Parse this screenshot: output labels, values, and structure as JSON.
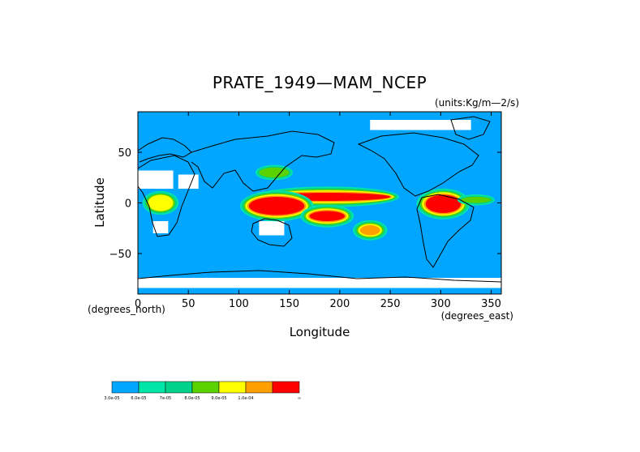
{
  "chart_data": {
    "type": "heatmap",
    "title": "PRATE_1949—MAM_NCEP",
    "units": "(units:Kg/m—2/s)",
    "xlabel": "Longitude",
    "ylabel": "Latitude",
    "x_unit_label": "(degrees_east)",
    "y_unit_label": "(degrees_north)",
    "xlim": [
      0,
      360
    ],
    "ylim": [
      -90,
      90
    ],
    "x_ticks": [
      0,
      50,
      100,
      150,
      200,
      250,
      300,
      350
    ],
    "y_ticks": [
      50,
      0,
      -50
    ],
    "x_tick_labels": [
      "0",
      "50",
      "100",
      "150",
      "200",
      "250",
      "300",
      "350"
    ],
    "y_tick_labels": [
      "50",
      "0",
      "−50"
    ],
    "colorbar": {
      "colors": [
        "#00a6ff",
        "#00e6a8",
        "#00d28c",
        "#5ad200",
        "#ffff00",
        "#ffa000",
        "#ff0000"
      ],
      "labels": [
        "3.0e-05",
        "6.0e-05",
        "7e-05",
        "8.0e-05",
        "9.0e-05",
        "1.0e-04",
        "∞"
      ]
    },
    "base_color": "#00a6ff",
    "missing_color": "#ffffff",
    "regions": [
      {
        "name": "itcz-pacific-core",
        "level": 7,
        "lon": [
          125,
          250
        ],
        "lat": [
          2,
          10
        ],
        "shape": "ellipse"
      },
      {
        "name": "maritime-continent",
        "level": 7,
        "lon": [
          110,
          165
        ],
        "lat": [
          -12,
          6
        ],
        "shape": "ellipse"
      },
      {
        "name": "spcz",
        "level": 7,
        "lon": [
          170,
          205
        ],
        "lat": [
          -18,
          -8
        ],
        "shape": "ellipse"
      },
      {
        "name": "amazon",
        "level": 7,
        "lon": [
          285,
          320
        ],
        "lat": [
          -10,
          8
        ],
        "shape": "ellipse"
      },
      {
        "name": "africa-equatorial",
        "level": 5,
        "lon": [
          10,
          35
        ],
        "lat": [
          -8,
          8
        ],
        "shape": "ellipse"
      },
      {
        "name": "atlantic-itcz",
        "level": 4,
        "lon": [
          320,
          350
        ],
        "lat": [
          0,
          6
        ],
        "shape": "ellipse"
      },
      {
        "name": "kuroshio",
        "level": 4,
        "lon": [
          120,
          150
        ],
        "lat": [
          25,
          35
        ],
        "shape": "ellipse"
      },
      {
        "name": "south-pacific-blob",
        "level": 6,
        "lon": [
          220,
          240
        ],
        "lat": [
          -32,
          -22
        ],
        "shape": "ellipse"
      }
    ],
    "missing_regions": [
      {
        "name": "sahara",
        "lon": [
          0,
          35
        ],
        "lat": [
          14,
          32
        ]
      },
      {
        "name": "arabia",
        "lon": [
          40,
          60
        ],
        "lat": [
          14,
          28
        ]
      },
      {
        "name": "australia-interior",
        "lon": [
          120,
          145
        ],
        "lat": [
          -32,
          -18
        ]
      },
      {
        "name": "southern-africa",
        "lon": [
          15,
          30
        ],
        "lat": [
          -30,
          -18
        ]
      },
      {
        "name": "antarctica-coast",
        "lon": [
          0,
          360
        ],
        "lat": [
          -84,
          -74
        ]
      },
      {
        "name": "arctic",
        "lon": [
          230,
          330
        ],
        "lat": [
          72,
          82
        ]
      }
    ]
  }
}
